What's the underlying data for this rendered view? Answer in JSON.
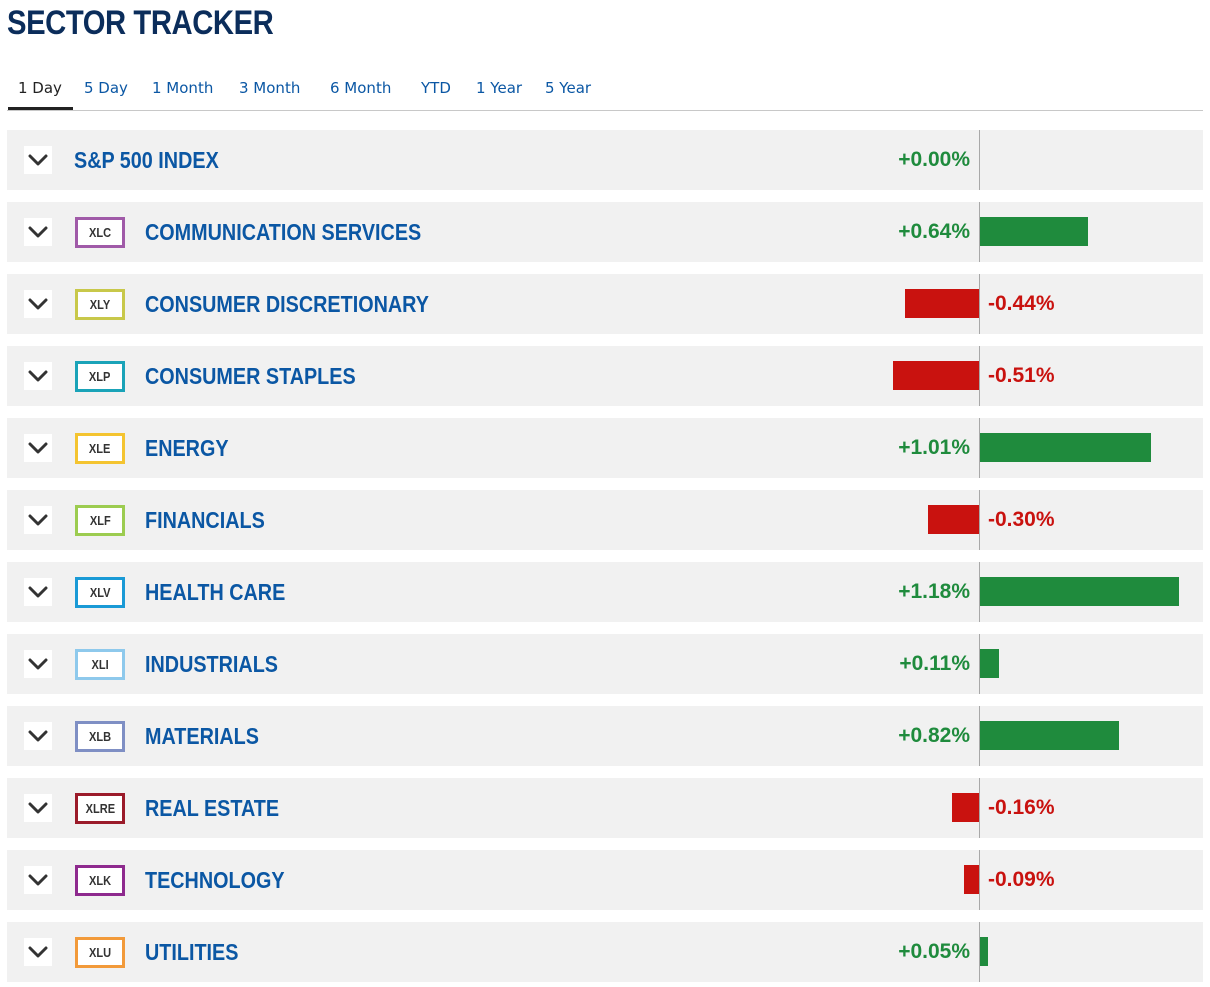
{
  "header": {
    "title": "SECTOR TRACKER"
  },
  "tabs": [
    {
      "label": "1 Day",
      "active": true
    },
    {
      "label": "5 Day"
    },
    {
      "label": "1 Month"
    },
    {
      "label": "3 Month"
    },
    {
      "label": "6 Month"
    },
    {
      "label": "YTD"
    },
    {
      "label": "1 Year"
    },
    {
      "label": "5 Year"
    }
  ],
  "colors": {
    "positive": "#1f8b3d",
    "negative": "#c9120f",
    "link": "#0b57a4",
    "title": "#0b2d5b",
    "row_bg": "#f1f1f1"
  },
  "index": {
    "name": "S&P 500 INDEX",
    "change": "+0.00%",
    "value": 0.0
  },
  "sectors": [
    {
      "ticker": "XLC",
      "name": "COMMUNICATION SERVICES",
      "change": "+0.64%",
      "value": 0.64,
      "color": "#a05aa8"
    },
    {
      "ticker": "XLY",
      "name": "CONSUMER DISCRETIONARY",
      "change": "-0.44%",
      "value": -0.44,
      "color": "#c8c84a"
    },
    {
      "ticker": "XLP",
      "name": "CONSUMER STAPLES",
      "change": "-0.51%",
      "value": -0.51,
      "color": "#1aa3b8"
    },
    {
      "ticker": "XLE",
      "name": "ENERGY",
      "change": "+1.01%",
      "value": 1.01,
      "color": "#f4c430"
    },
    {
      "ticker": "XLF",
      "name": "FINANCIALS",
      "change": "-0.30%",
      "value": -0.3,
      "color": "#9ccc50"
    },
    {
      "ticker": "XLV",
      "name": "HEALTH CARE",
      "change": "+1.18%",
      "value": 1.18,
      "color": "#1a9ad6"
    },
    {
      "ticker": "XLI",
      "name": "INDUSTRIALS",
      "change": "+0.11%",
      "value": 0.11,
      "color": "#8ec9ec"
    },
    {
      "ticker": "XLB",
      "name": "MATERIALS",
      "change": "+0.82%",
      "value": 0.82,
      "color": "#7f8fc4"
    },
    {
      "ticker": "XLRE",
      "name": "REAL ESTATE",
      "change": "-0.16%",
      "value": -0.16,
      "color": "#9b1b2a"
    },
    {
      "ticker": "XLK",
      "name": "TECHNOLOGY",
      "change": "-0.09%",
      "value": -0.09,
      "color": "#8e2a8e"
    },
    {
      "ticker": "XLU",
      "name": "UTILITIES",
      "change": "+0.05%",
      "value": 0.05,
      "color": "#f29a3a"
    }
  ]
}
